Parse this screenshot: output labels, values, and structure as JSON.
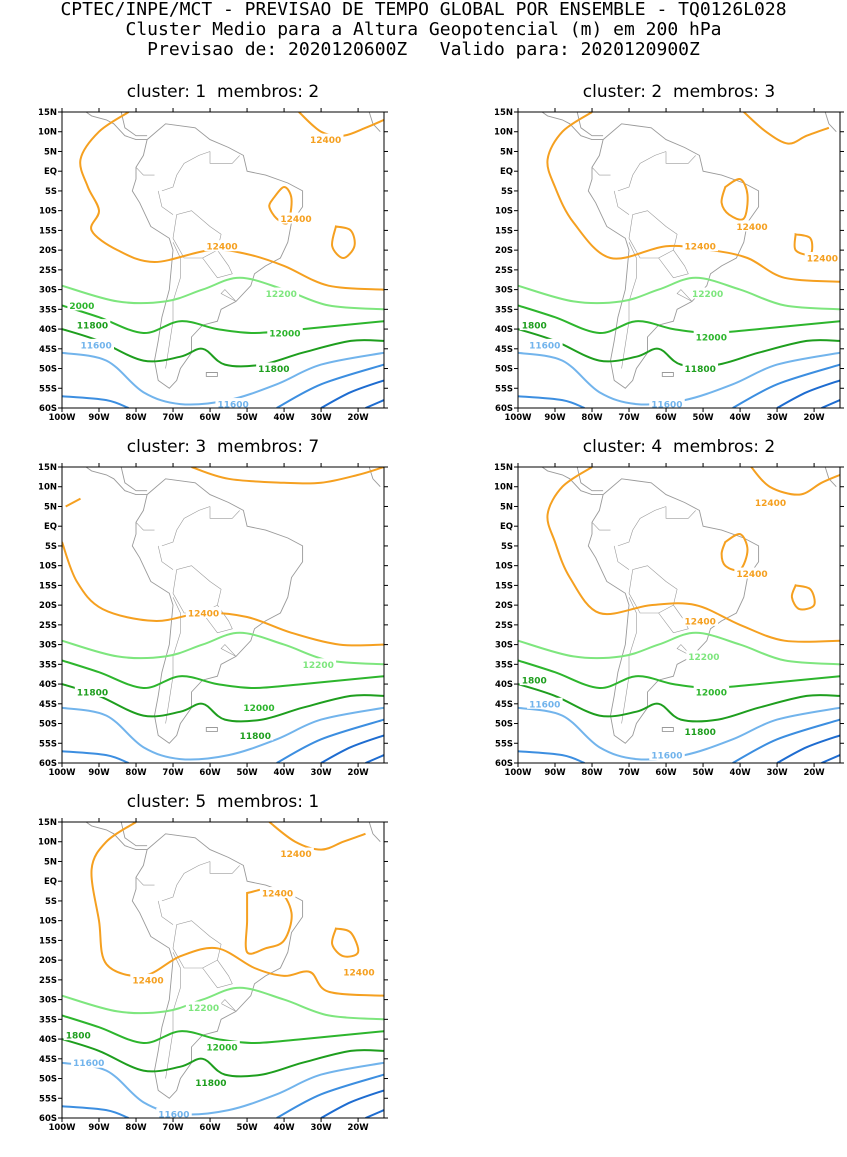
{
  "header": {
    "line1": "CPTEC/INPE/MCT - PREVISAO DE TEMPO GLOBAL POR ENSEMBLE - TQ0126L028",
    "line2": "Cluster Medio para a Altura Geopotencial (m) em 200 hPa",
    "line3": "Previsao de: 2020120600Z   Valido para: 2020120900Z"
  },
  "axes": {
    "lat_labels": [
      "15N",
      "10N",
      "5N",
      "EQ",
      "5S",
      "10S",
      "15S",
      "20S",
      "25S",
      "30S",
      "35S",
      "40S",
      "45S",
      "50S",
      "55S",
      "60S"
    ],
    "lon_labels": [
      "100W",
      "90W",
      "80W",
      "70W",
      "60W",
      "50W",
      "40W",
      "30W",
      "20W"
    ]
  },
  "colors": {
    "c12400": "#f5a020",
    "c12200": "#7ee67e",
    "c12000": "#2db52d",
    "c11800": "#1e9e1e",
    "c11600": "#72b4ec",
    "c11400": "#3c8ee0",
    "c11200": "#1e6cd0",
    "coast": "#9a9a9a"
  },
  "panels": [
    {
      "title": "cluster: 1  membros: 2",
      "labels": [
        {
          "text": "12400",
          "lon": -33,
          "lat": 8,
          "color": "c12400"
        },
        {
          "text": "12400",
          "lon": -41,
          "lat": -12,
          "color": "c12400"
        },
        {
          "text": "12400",
          "lon": -61,
          "lat": -19,
          "color": "c12400"
        },
        {
          "text": "12200",
          "lon": -45,
          "lat": -31,
          "color": "c12200"
        },
        {
          "text": "2000",
          "lon": -98,
          "lat": -34,
          "color": "c12000"
        },
        {
          "text": "11800",
          "lon": -96,
          "lat": -39,
          "color": "c11800"
        },
        {
          "text": "12000",
          "lon": -44,
          "lat": -41,
          "color": "c12000"
        },
        {
          "text": "11600",
          "lon": -95,
          "lat": -44,
          "color": "c11600"
        },
        {
          "text": "11800",
          "lon": -47,
          "lat": -50,
          "color": "c11800"
        },
        {
          "text": "11600",
          "lon": -58,
          "lat": -59,
          "color": "c11600"
        }
      ]
    },
    {
      "title": "cluster: 2  membros: 3",
      "labels": [
        {
          "text": "12400",
          "lon": -41,
          "lat": -14,
          "color": "c12400"
        },
        {
          "text": "12400",
          "lon": -55,
          "lat": -19,
          "color": "c12400"
        },
        {
          "text": "12400",
          "lon": -22,
          "lat": -22,
          "color": "c12400"
        },
        {
          "text": "12200",
          "lon": -53,
          "lat": -31,
          "color": "c12200"
        },
        {
          "text": "1800",
          "lon": -99,
          "lat": -39,
          "color": "c11800"
        },
        {
          "text": "12000",
          "lon": -52,
          "lat": -42,
          "color": "c12000"
        },
        {
          "text": "11600",
          "lon": -97,
          "lat": -44,
          "color": "c11600"
        },
        {
          "text": "11800",
          "lon": -55,
          "lat": -50,
          "color": "c11800"
        },
        {
          "text": "11600",
          "lon": -64,
          "lat": -59,
          "color": "c11600"
        }
      ]
    },
    {
      "title": "cluster: 3  membros: 7",
      "labels": [
        {
          "text": "12400",
          "lon": -66,
          "lat": -22,
          "color": "c12400"
        },
        {
          "text": "12200",
          "lon": -35,
          "lat": -35,
          "color": "c12200"
        },
        {
          "text": "11800",
          "lon": -96,
          "lat": -42,
          "color": "c11800"
        },
        {
          "text": "12000",
          "lon": -51,
          "lat": -46,
          "color": "c12000"
        },
        {
          "text": "11800",
          "lon": -52,
          "lat": -53,
          "color": "c11800"
        }
      ]
    },
    {
      "title": "cluster: 4  membros: 2",
      "labels": [
        {
          "text": "12400",
          "lon": -36,
          "lat": 6,
          "color": "c12400"
        },
        {
          "text": "12400",
          "lon": -41,
          "lat": -12,
          "color": "c12400"
        },
        {
          "text": "12400",
          "lon": -55,
          "lat": -24,
          "color": "c12400"
        },
        {
          "text": "12200",
          "lon": -54,
          "lat": -33,
          "color": "c12200"
        },
        {
          "text": "1800",
          "lon": -99,
          "lat": -39,
          "color": "c11800"
        },
        {
          "text": "12000",
          "lon": -52,
          "lat": -42,
          "color": "c12000"
        },
        {
          "text": "11600",
          "lon": -97,
          "lat": -45,
          "color": "c11600"
        },
        {
          "text": "11800",
          "lon": -55,
          "lat": -52,
          "color": "c11800"
        },
        {
          "text": "11600",
          "lon": -64,
          "lat": -58,
          "color": "c11600"
        }
      ]
    },
    {
      "title": "cluster: 5  membros: 1",
      "labels": [
        {
          "text": "12400",
          "lon": -41,
          "lat": 7,
          "color": "c12400"
        },
        {
          "text": "12400",
          "lon": -46,
          "lat": -3,
          "color": "c12400"
        },
        {
          "text": "12400",
          "lon": -24,
          "lat": -23,
          "color": "c12400"
        },
        {
          "text": "12400",
          "lon": -81,
          "lat": -25,
          "color": "c12400"
        },
        {
          "text": "12200",
          "lon": -66,
          "lat": -32,
          "color": "c12200"
        },
        {
          "text": "1800",
          "lon": -99,
          "lat": -39,
          "color": "c11800"
        },
        {
          "text": "12000",
          "lon": -61,
          "lat": -42,
          "color": "c12000"
        },
        {
          "text": "11600",
          "lon": -97,
          "lat": -46,
          "color": "c11600"
        },
        {
          "text": "11800",
          "lon": -64,
          "lat": -51,
          "color": "c11800"
        },
        {
          "text": "11600",
          "lon": -74,
          "lat": -59,
          "color": "c11600"
        }
      ]
    }
  ]
}
